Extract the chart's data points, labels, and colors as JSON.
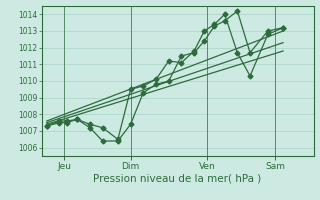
{
  "xlabel": "Pression niveau de la mer( hPa )",
  "bg_color": "#cceae2",
  "line_color": "#2d6b3c",
  "grid_color": "#b0d8cc",
  "spine_color": "#2d6b3c",
  "ylim": [
    1005.5,
    1014.5
  ],
  "yticks": [
    1006,
    1007,
    1008,
    1009,
    1010,
    1011,
    1012,
    1013,
    1014
  ],
  "xlim": [
    -0.2,
    10.5
  ],
  "day_labels": [
    "Jeu",
    "Dim",
    "Ven",
    "Sam"
  ],
  "day_positions": [
    0.7,
    3.3,
    6.3,
    9.0
  ],
  "vline_positions": [
    0.7,
    3.3,
    6.3,
    9.0
  ],
  "line1_x": [
    0.0,
    0.5,
    0.8,
    1.2,
    1.7,
    2.2,
    2.8,
    3.3,
    3.8,
    4.3,
    4.8,
    5.3,
    5.8,
    6.2,
    6.6,
    7.0,
    7.5,
    8.0,
    8.7,
    9.3
  ],
  "line1_y": [
    1007.3,
    1007.5,
    1007.5,
    1007.7,
    1007.2,
    1006.4,
    1006.4,
    1007.4,
    1009.3,
    1009.8,
    1010.0,
    1011.5,
    1011.7,
    1012.4,
    1013.3,
    1013.6,
    1014.2,
    1011.7,
    1013.0,
    1013.2
  ],
  "line2_x": [
    0.0,
    0.5,
    0.8,
    1.2,
    1.7,
    2.2,
    2.8,
    3.3,
    3.8,
    4.3,
    4.8,
    5.3,
    5.8,
    6.2,
    6.6,
    7.0,
    7.5,
    8.0,
    8.7,
    9.3
  ],
  "line2_y": [
    1007.3,
    1007.6,
    1007.6,
    1007.7,
    1007.4,
    1007.2,
    1006.5,
    1009.5,
    1009.7,
    1010.1,
    1011.2,
    1011.1,
    1011.8,
    1013.0,
    1013.4,
    1014.0,
    1011.7,
    1010.3,
    1012.8,
    1013.2
  ],
  "trend1_x": [
    0.0,
    9.3
  ],
  "trend1_y": [
    1007.4,
    1011.8
  ],
  "trend2_x": [
    0.0,
    9.3
  ],
  "trend2_y": [
    1007.6,
    1013.0
  ],
  "trend3_x": [
    0.0,
    9.3
  ],
  "trend3_y": [
    1007.5,
    1012.3
  ]
}
